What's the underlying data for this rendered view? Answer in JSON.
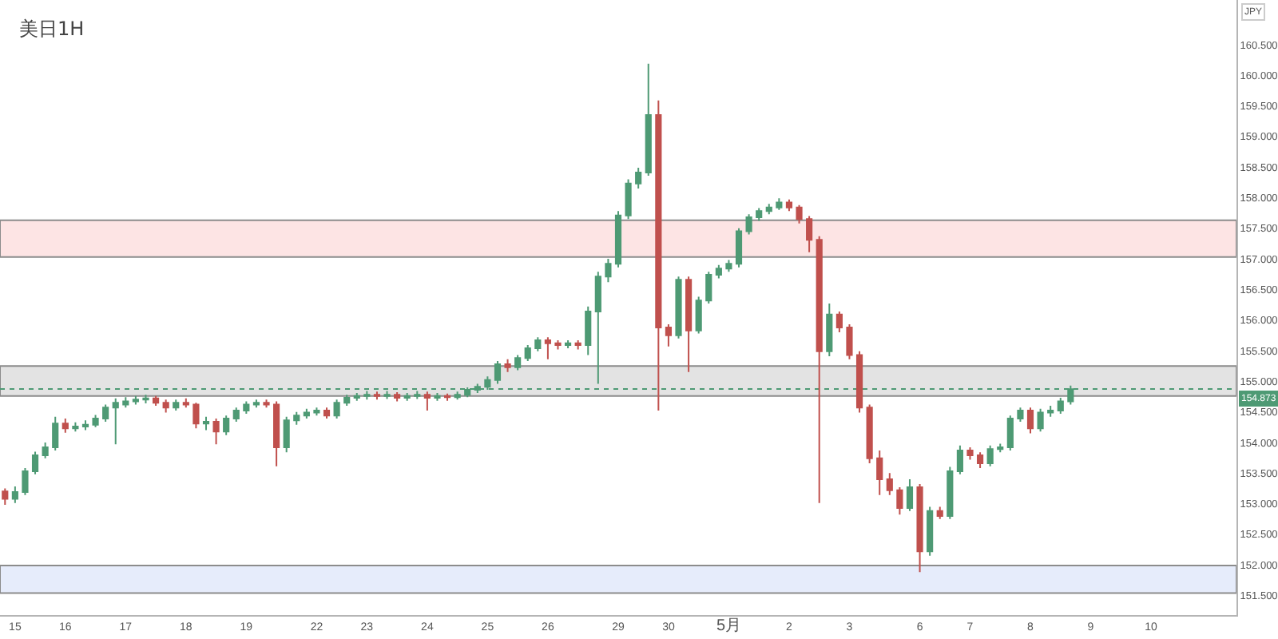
{
  "chart_data": {
    "type": "candlestick",
    "title": "美日1H",
    "ylabel": "JPY",
    "categories": [
      null,
      "15",
      null,
      null,
      null,
      null,
      "16",
      null,
      null,
      null,
      null,
      null,
      "17",
      null,
      null,
      null,
      null,
      null,
      "18",
      null,
      null,
      null,
      null,
      null,
      "19",
      null,
      null,
      null,
      null,
      null,
      null,
      "22",
      null,
      null,
      null,
      null,
      "23",
      null,
      null,
      null,
      null,
      null,
      "24",
      null,
      null,
      null,
      null,
      null,
      "25",
      null,
      null,
      null,
      null,
      null,
      "26",
      null,
      null,
      null,
      null,
      null,
      null,
      "29",
      null,
      null,
      null,
      null,
      "30",
      null,
      null,
      null,
      null,
      null,
      "5月",
      null,
      null,
      null,
      null,
      null,
      "2",
      null,
      null,
      null,
      null,
      null,
      "3",
      null,
      null,
      null,
      null,
      null,
      null,
      "6",
      null,
      null,
      null,
      null,
      "7",
      null,
      null,
      null,
      null,
      null,
      "8",
      null,
      null,
      null,
      null,
      null,
      "9",
      null,
      null,
      null,
      null,
      null,
      "10",
      null,
      null,
      null,
      null,
      null,
      null,
      null,
      null
    ],
    "ohlc": [
      [
        153.2,
        153.25,
        152.98,
        153.08
      ],
      [
        153.08,
        153.28,
        153.01,
        153.19
      ],
      [
        153.19,
        153.58,
        153.14,
        153.53
      ],
      [
        153.53,
        153.85,
        153.48,
        153.79
      ],
      [
        153.79,
        154.0,
        153.74,
        153.92
      ],
      [
        153.92,
        154.42,
        153.87,
        154.31
      ],
      [
        154.31,
        154.39,
        154.16,
        154.23
      ],
      [
        154.23,
        154.33,
        154.18,
        154.26
      ],
      [
        154.26,
        154.36,
        154.2,
        154.29
      ],
      [
        154.29,
        154.45,
        154.25,
        154.39
      ],
      [
        154.39,
        154.62,
        154.34,
        154.57
      ],
      [
        154.57,
        154.72,
        153.97,
        154.65
      ],
      [
        154.62,
        154.74,
        154.57,
        154.67
      ],
      [
        154.67,
        154.76,
        154.62,
        154.7
      ],
      [
        154.7,
        154.78,
        154.64,
        154.72
      ],
      [
        154.72,
        154.76,
        154.6,
        154.65
      ],
      [
        154.65,
        154.7,
        154.49,
        154.57
      ],
      [
        154.57,
        154.7,
        154.52,
        154.65
      ],
      [
        154.65,
        154.72,
        154.57,
        154.62
      ],
      [
        154.62,
        154.65,
        154.23,
        154.31
      ],
      [
        154.31,
        154.42,
        154.2,
        154.34
      ],
      [
        154.34,
        154.39,
        153.97,
        154.18
      ],
      [
        154.18,
        154.44,
        154.12,
        154.39
      ],
      [
        154.39,
        154.57,
        154.34,
        154.52
      ],
      [
        154.52,
        154.67,
        154.47,
        154.62
      ],
      [
        154.62,
        154.7,
        154.57,
        154.65
      ],
      [
        154.65,
        154.7,
        154.57,
        154.62
      ],
      [
        154.62,
        154.67,
        153.61,
        153.92
      ],
      [
        153.92,
        154.42,
        153.84,
        154.36
      ],
      [
        154.36,
        154.5,
        154.29,
        154.44
      ],
      [
        154.44,
        154.55,
        154.39,
        154.49
      ],
      [
        154.49,
        154.57,
        154.44,
        154.52
      ],
      [
        154.52,
        154.57,
        154.39,
        154.44
      ],
      [
        154.44,
        154.7,
        154.39,
        154.65
      ],
      [
        154.65,
        154.78,
        154.6,
        154.73
      ],
      [
        154.73,
        154.81,
        154.68,
        154.76
      ],
      [
        154.76,
        154.84,
        154.7,
        154.78
      ],
      [
        154.78,
        154.83,
        154.7,
        154.76
      ],
      [
        154.76,
        154.84,
        154.71,
        154.78
      ],
      [
        154.78,
        154.82,
        154.67,
        154.73
      ],
      [
        154.73,
        154.81,
        154.68,
        154.76
      ],
      [
        154.76,
        154.84,
        154.71,
        154.78
      ],
      [
        154.78,
        154.83,
        154.52,
        154.73
      ],
      [
        154.73,
        154.81,
        154.68,
        154.76
      ],
      [
        154.76,
        154.8,
        154.68,
        154.74
      ],
      [
        154.74,
        154.83,
        154.7,
        154.78
      ],
      [
        154.78,
        154.9,
        154.74,
        154.86
      ],
      [
        154.86,
        154.96,
        154.81,
        154.91
      ],
      [
        154.91,
        155.08,
        154.86,
        155.02
      ],
      [
        155.02,
        155.33,
        154.96,
        155.28
      ],
      [
        155.28,
        155.36,
        155.15,
        155.23
      ],
      [
        155.23,
        155.43,
        155.18,
        155.38
      ],
      [
        155.38,
        155.59,
        155.33,
        155.54
      ],
      [
        155.54,
        155.72,
        155.49,
        155.67
      ],
      [
        155.67,
        155.72,
        155.36,
        155.62
      ],
      [
        155.62,
        155.67,
        155.52,
        155.59
      ],
      [
        155.59,
        155.67,
        155.54,
        155.62
      ],
      [
        155.62,
        155.67,
        155.52,
        155.59
      ],
      [
        155.59,
        156.22,
        155.43,
        156.14
      ],
      [
        156.14,
        156.79,
        154.96,
        156.71
      ],
      [
        156.71,
        157.0,
        156.62,
        156.92
      ],
      [
        156.92,
        157.78,
        156.86,
        157.71
      ],
      [
        157.71,
        158.3,
        157.65,
        158.23
      ],
      [
        158.23,
        158.49,
        158.15,
        158.41
      ],
      [
        158.41,
        160.19,
        158.36,
        159.35
      ],
      [
        159.35,
        159.59,
        154.52,
        155.88
      ],
      [
        155.88,
        155.93,
        155.57,
        155.75
      ],
      [
        155.75,
        156.71,
        155.7,
        156.66
      ],
      [
        156.66,
        156.71,
        155.15,
        155.83
      ],
      [
        155.83,
        156.38,
        155.78,
        156.32
      ],
      [
        156.32,
        156.79,
        156.27,
        156.74
      ],
      [
        156.74,
        156.9,
        156.68,
        156.84
      ],
      [
        156.84,
        156.98,
        156.79,
        156.92
      ],
      [
        156.92,
        157.5,
        156.86,
        157.45
      ],
      [
        157.45,
        157.73,
        157.4,
        157.68
      ],
      [
        157.68,
        157.83,
        157.62,
        157.78
      ],
      [
        157.78,
        157.9,
        157.73,
        157.84
      ],
      [
        157.84,
        157.99,
        157.8,
        157.92
      ],
      [
        157.92,
        157.97,
        157.78,
        157.84
      ],
      [
        157.84,
        157.88,
        157.58,
        157.65
      ],
      [
        157.65,
        157.7,
        157.11,
        157.31
      ],
      [
        157.31,
        157.37,
        153.01,
        155.49
      ],
      [
        155.49,
        156.27,
        155.41,
        156.09
      ],
      [
        156.09,
        156.14,
        155.8,
        155.88
      ],
      [
        155.88,
        155.93,
        155.36,
        155.43
      ],
      [
        155.43,
        155.49,
        154.49,
        154.57
      ],
      [
        154.57,
        154.62,
        153.66,
        153.74
      ],
      [
        153.74,
        153.87,
        153.14,
        153.4
      ],
      [
        153.4,
        153.5,
        153.14,
        153.22
      ],
      [
        153.22,
        153.27,
        152.82,
        152.93
      ],
      [
        152.93,
        153.4,
        152.88,
        153.27
      ],
      [
        153.27,
        153.32,
        151.88,
        152.22
      ],
      [
        152.22,
        152.95,
        152.15,
        152.88
      ],
      [
        152.88,
        152.95,
        152.75,
        152.8
      ],
      [
        152.8,
        153.6,
        152.75,
        153.53
      ],
      [
        153.53,
        153.95,
        153.48,
        153.87
      ],
      [
        153.87,
        153.92,
        153.72,
        153.79
      ],
      [
        153.79,
        153.84,
        153.58,
        153.66
      ],
      [
        153.66,
        153.95,
        153.61,
        153.89
      ],
      [
        153.89,
        153.98,
        153.84,
        153.92
      ],
      [
        153.92,
        154.44,
        153.87,
        154.39
      ],
      [
        154.39,
        154.57,
        154.34,
        154.52
      ],
      [
        154.52,
        154.57,
        154.15,
        154.23
      ],
      [
        154.23,
        154.55,
        154.18,
        154.49
      ],
      [
        154.49,
        154.6,
        154.42,
        154.52
      ],
      [
        154.52,
        154.73,
        154.47,
        154.67
      ],
      [
        154.67,
        154.93,
        154.62,
        154.87
      ],
      null,
      null,
      null,
      null,
      null,
      null,
      null,
      null,
      null,
      null,
      null,
      null,
      null,
      null,
      null,
      null
    ],
    "colors": [
      "#c0504d",
      "#4e9a74",
      "#4e9a74",
      "#4e9a74",
      "#4e9a74",
      "#4e9a74",
      "#c0504d",
      "#4e9a74",
      "#4e9a74",
      "#4e9a74",
      "#4e9a74",
      "#4e9a74",
      "#4e9a74",
      "#4e9a74",
      "#4e9a74",
      "#c0504d",
      "#c0504d",
      "#4e9a74",
      "#c0504d",
      "#c0504d",
      "#4e9a74",
      "#c0504d",
      "#4e9a74",
      "#4e9a74",
      "#4e9a74",
      "#4e9a74",
      "#c0504d",
      "#c0504d",
      "#4e9a74",
      "#4e9a74",
      "#4e9a74",
      "#4e9a74",
      "#c0504d",
      "#4e9a74",
      "#4e9a74",
      "#4e9a74",
      "#4e9a74",
      "#c0504d",
      "#4e9a74",
      "#c0504d",
      "#4e9a74",
      "#4e9a74",
      "#c0504d",
      "#4e9a74",
      "#c0504d",
      "#4e9a74",
      "#4e9a74",
      "#4e9a74",
      "#4e9a74",
      "#4e9a74",
      "#c0504d",
      "#4e9a74",
      "#4e9a74",
      "#4e9a74",
      "#c0504d",
      "#c0504d",
      "#4e9a74",
      "#c0504d",
      "#4e9a74",
      "#4e9a74",
      "#4e9a74",
      "#4e9a74",
      "#4e9a74",
      "#4e9a74",
      "#4e9a74",
      "#c0504d",
      "#c0504d",
      "#4e9a74",
      "#c0504d",
      "#4e9a74",
      "#4e9a74",
      "#4e9a74",
      "#4e9a74",
      "#4e9a74",
      "#4e9a74",
      "#4e9a74",
      "#4e9a74",
      "#4e9a74",
      "#c0504d",
      "#c0504d",
      "#c0504d",
      "#c0504d",
      "#4e9a74",
      "#c0504d",
      "#c0504d",
      "#c0504d",
      "#c0504d",
      "#c0504d",
      "#c0504d",
      "#c0504d",
      "#4e9a74",
      "#c0504d",
      "#4e9a74",
      "#c0504d",
      "#4e9a74",
      "#4e9a74",
      "#c0504d",
      "#c0504d",
      "#4e9a74",
      "#4e9a74",
      "#4e9a74",
      "#4e9a74",
      "#c0504d",
      "#4e9a74",
      "#4e9a74",
      "#4e9a74",
      "#4e9a74",
      null,
      null,
      null,
      null,
      null,
      null,
      null,
      null,
      null,
      null,
      null,
      null,
      null,
      null,
      null,
      null
    ],
    "ylim": [
      151.18,
      161.23
    ],
    "yticks": [
      {
        "value": 151.5,
        "label": "151.500"
      },
      {
        "value": 152.0,
        "label": "152.000"
      },
      {
        "value": 152.5,
        "label": "152.500"
      },
      {
        "value": 153.0,
        "label": "153.000"
      },
      {
        "value": 153.5,
        "label": "153.500"
      },
      {
        "value": 154.0,
        "label": "154.000"
      },
      {
        "value": 154.5,
        "label": "154.500"
      },
      {
        "value": 155.0,
        "label": "155.000"
      },
      {
        "value": 155.5,
        "label": "155.500"
      },
      {
        "value": 156.0,
        "label": "156.000"
      },
      {
        "value": 156.5,
        "label": "156.500"
      },
      {
        "value": 157.0,
        "label": "157.000"
      },
      {
        "value": 157.5,
        "label": "157.500"
      },
      {
        "value": 158.0,
        "label": "158.000"
      },
      {
        "value": 158.5,
        "label": "158.500"
      },
      {
        "value": 159.0,
        "label": "159.000"
      },
      {
        "value": 159.5,
        "label": "159.500"
      },
      {
        "value": 160.0,
        "label": "160.000"
      },
      {
        "value": 160.5,
        "label": "160.500"
      }
    ],
    "bands": [
      {
        "axis": "y",
        "from": 154.76,
        "to": 155.25,
        "color": "#e3e3e3"
      },
      {
        "axis": "y",
        "from": 157.03,
        "to": 157.63,
        "color": "#fde4e4"
      },
      {
        "axis": "y",
        "from": 151.54,
        "to": 151.99,
        "color": "#e6ecfb"
      }
    ],
    "ref_lines": [
      {
        "axis": "y",
        "value": 154.873,
        "label": "154.873",
        "color": "#4e9a74",
        "line_style": "dotted"
      }
    ]
  }
}
